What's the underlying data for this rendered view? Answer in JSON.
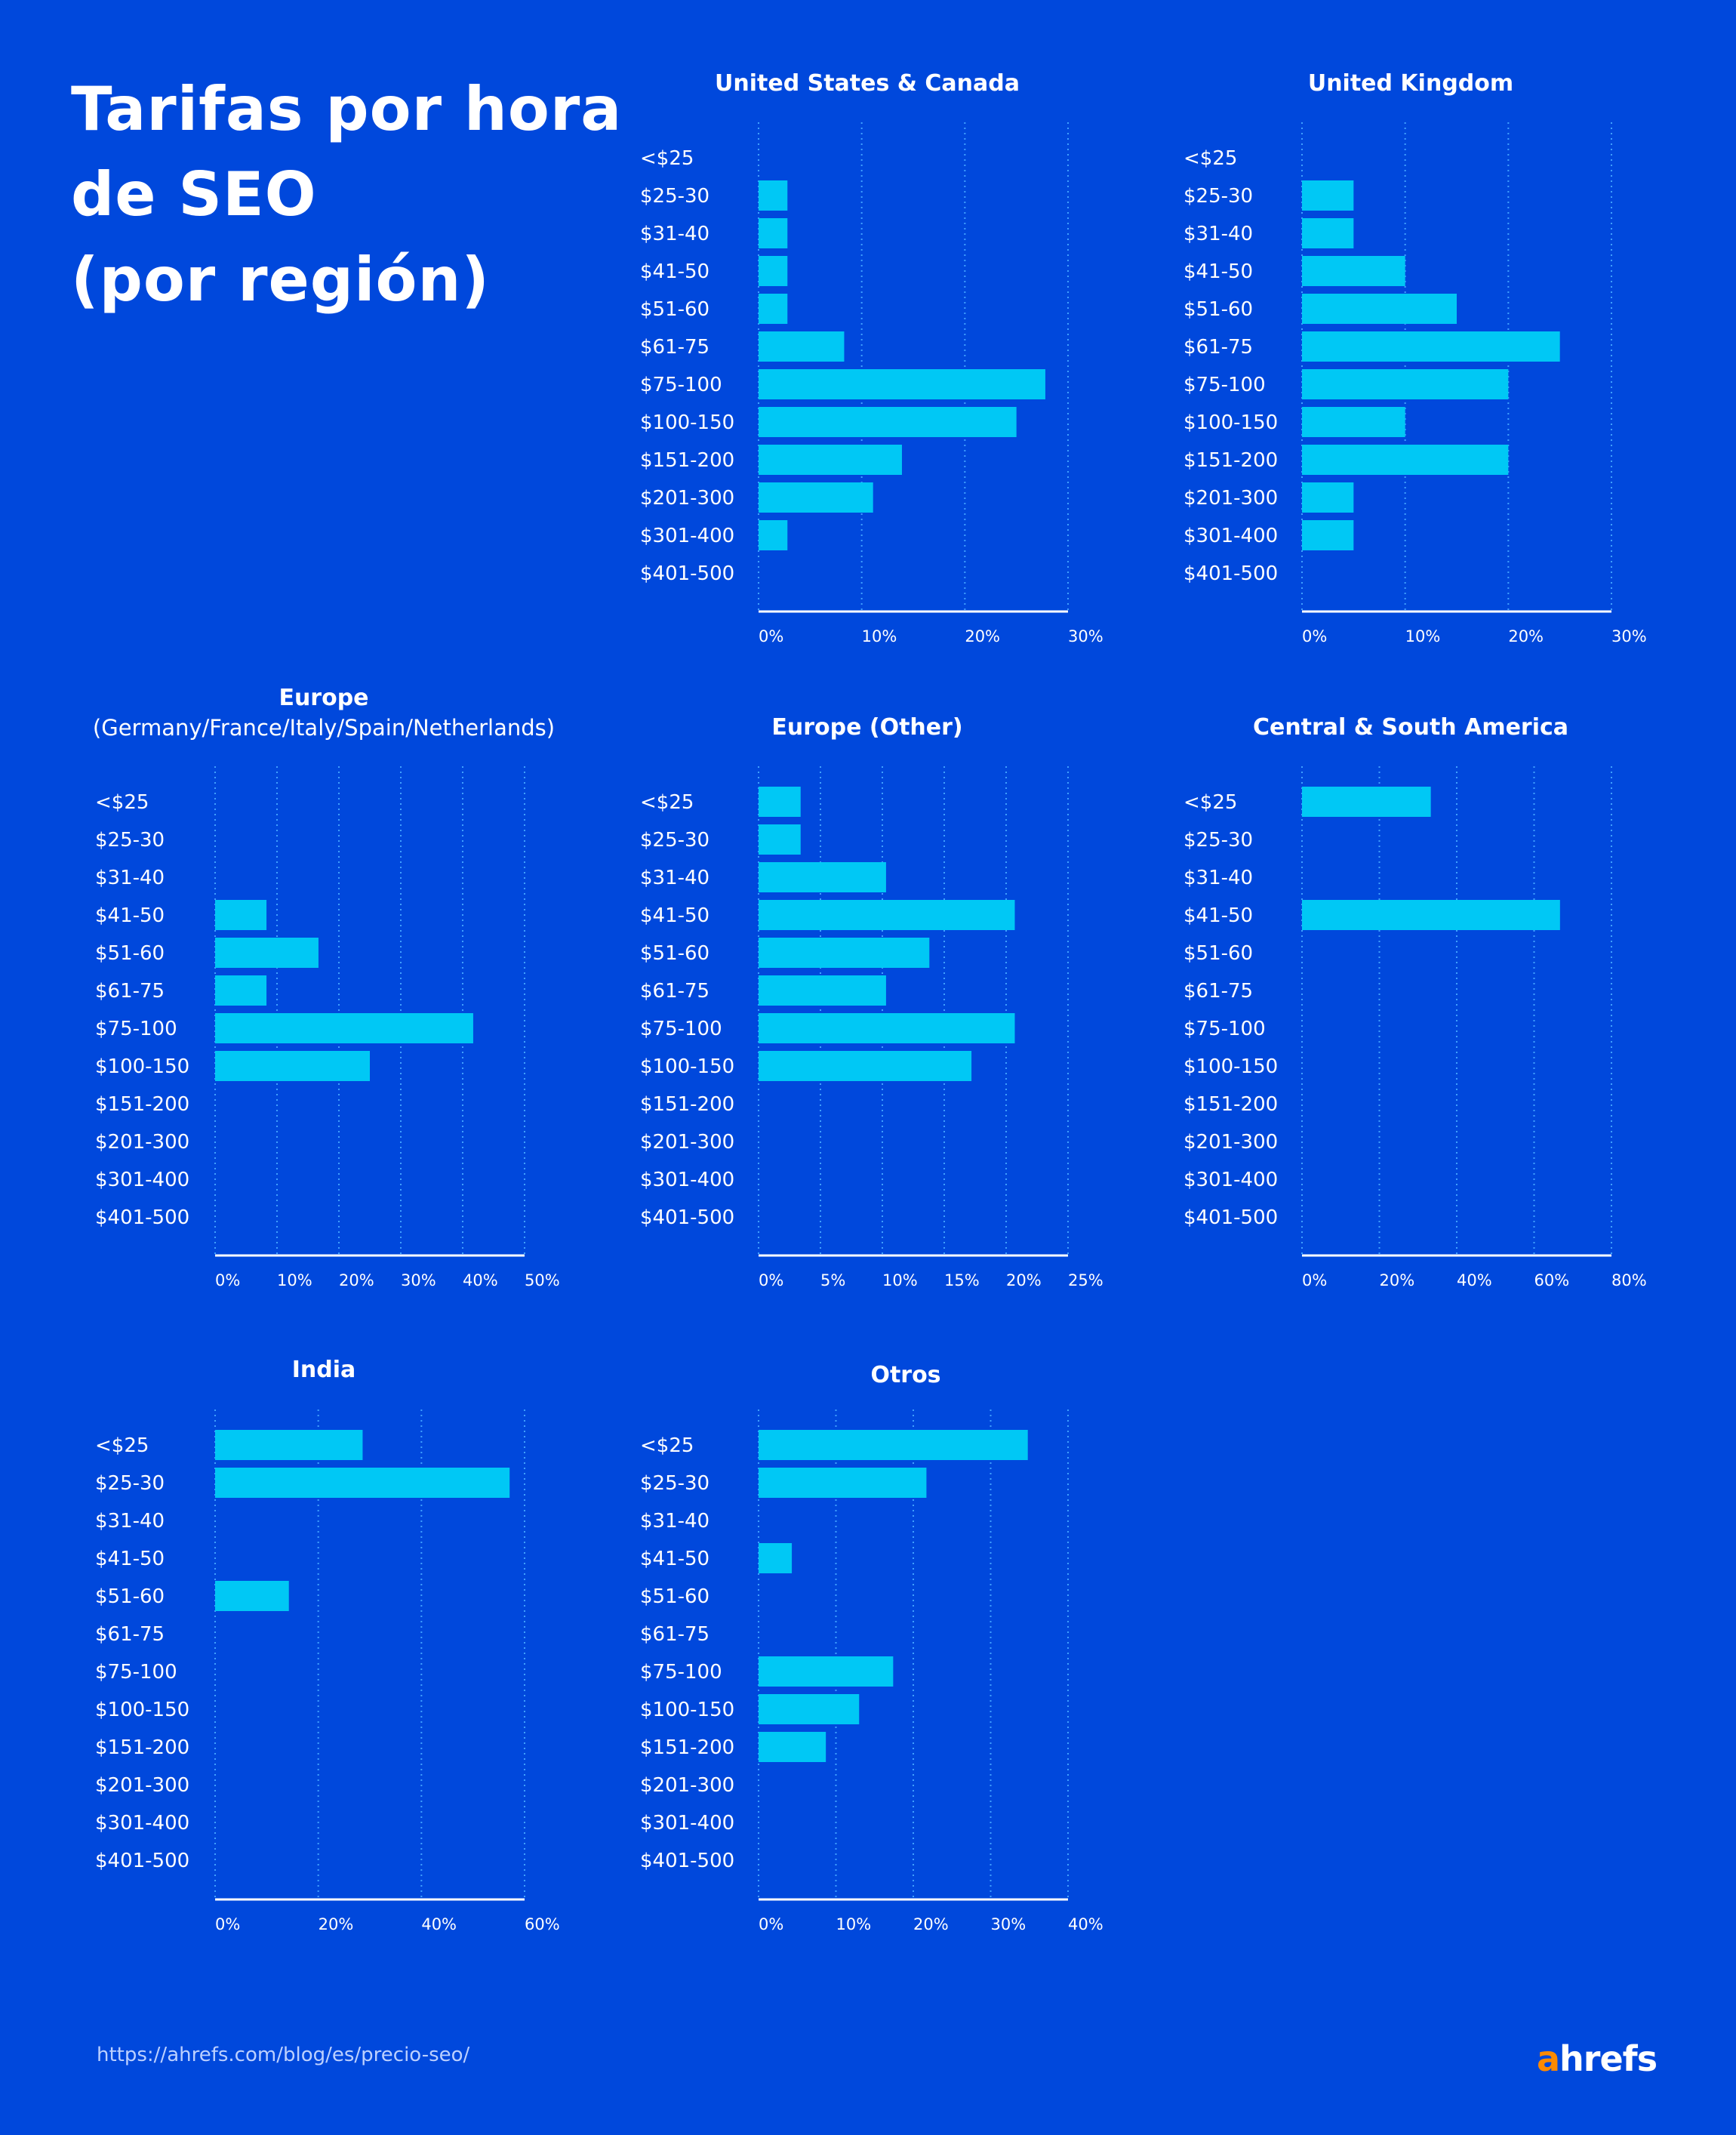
{
  "title_lines": [
    "Tarifas por hora",
    "de SEO",
    "(por región)"
  ],
  "footer_url": "https://ahrefs.com/blog/es/precio-seo/",
  "logo": {
    "accent": "a",
    "rest": "hrefs",
    "accent_color": "#FF8A00"
  },
  "colors": {
    "background": "#0048DC",
    "bar": "#00C8F5",
    "grid": "#3FA0FF",
    "axis": "#FFFFFF"
  },
  "chart_data": [
    {
      "type": "bar",
      "orientation": "horizontal",
      "title": "United States & Canada",
      "subtitle": "",
      "categories": [
        "<$25",
        "$25-30",
        "$31-40",
        "$41-50",
        "$51-60",
        "$61-75",
        "$75-100",
        "$100-150",
        "$151-200",
        "$201-300",
        "$301-400",
        "$401-500"
      ],
      "values": [
        0,
        2.8,
        2.8,
        2.8,
        2.8,
        8.3,
        27.8,
        25.0,
        13.9,
        11.1,
        2.8,
        0
      ],
      "xlim": [
        0,
        30
      ],
      "xticks": [
        "0%",
        "10%",
        "20%",
        "30%"
      ],
      "grid": true
    },
    {
      "type": "bar",
      "orientation": "horizontal",
      "title": "United Kingdom",
      "subtitle": "",
      "categories": [
        "<$25",
        "$25-30",
        "$31-40",
        "$41-50",
        "$51-60",
        "$61-75",
        "$75-100",
        "$100-150",
        "$151-200",
        "$201-300",
        "$301-400",
        "$401-500"
      ],
      "values": [
        0,
        5,
        5,
        10,
        15,
        25,
        20,
        10,
        20,
        5,
        5,
        0
      ],
      "xlim": [
        0,
        30
      ],
      "xticks": [
        "0%",
        "10%",
        "20%",
        "30%"
      ],
      "grid": true
    },
    {
      "type": "bar",
      "orientation": "horizontal",
      "title": "Europe",
      "subtitle": "(Germany/France/Italy/Spain/Netherlands)",
      "categories": [
        "<$25",
        "$25-30",
        "$31-40",
        "$41-50",
        "$51-60",
        "$61-75",
        "$75-100",
        "$100-150",
        "$151-200",
        "$201-300",
        "$301-400",
        "$401-500"
      ],
      "values": [
        0,
        0,
        0,
        8.3,
        16.7,
        8.3,
        41.7,
        25.0,
        0,
        0,
        0,
        0
      ],
      "xlim": [
        0,
        50
      ],
      "xticks": [
        "0%",
        "10%",
        "20%",
        "30%",
        "40%",
        "50%"
      ],
      "grid": true
    },
    {
      "type": "bar",
      "orientation": "horizontal",
      "title": "Europe (Other)",
      "subtitle": "",
      "categories": [
        "<$25",
        "$25-30",
        "$31-40",
        "$41-50",
        "$51-60",
        "$61-75",
        "$75-100",
        "$100-150",
        "$151-200",
        "$201-300",
        "$301-400",
        "$401-500"
      ],
      "values": [
        3.4,
        3.4,
        10.3,
        20.7,
        13.8,
        10.3,
        20.7,
        17.2,
        0,
        0,
        0,
        0
      ],
      "xlim": [
        0,
        25
      ],
      "xticks": [
        "0%",
        "5%",
        "10%",
        "15%",
        "20%",
        "25%"
      ],
      "grid": true
    },
    {
      "type": "bar",
      "orientation": "horizontal",
      "title": "Central & South America",
      "subtitle": "",
      "categories": [
        "<$25",
        "$25-30",
        "$31-40",
        "$41-50",
        "$51-60",
        "$61-75",
        "$75-100",
        "$100-150",
        "$151-200",
        "$201-300",
        "$301-400",
        "$401-500"
      ],
      "values": [
        33.3,
        0,
        0,
        66.7,
        0,
        0,
        0,
        0,
        0,
        0,
        0,
        0
      ],
      "xlim": [
        0,
        80
      ],
      "xticks": [
        "0%",
        "20%",
        "40%",
        "60%",
        "80%"
      ],
      "grid": true
    },
    {
      "type": "bar",
      "orientation": "horizontal",
      "title": "India",
      "subtitle": "",
      "categories": [
        "<$25",
        "$25-30",
        "$31-40",
        "$41-50",
        "$51-60",
        "$61-75",
        "$75-100",
        "$100-150",
        "$151-200",
        "$201-300",
        "$301-400",
        "$401-500"
      ],
      "values": [
        28.6,
        57.1,
        0,
        0,
        14.3,
        0,
        0,
        0,
        0,
        0,
        0,
        0
      ],
      "xlim": [
        0,
        60
      ],
      "xticks": [
        "0%",
        "20%",
        "40%",
        "60%"
      ],
      "grid": true
    },
    {
      "type": "bar",
      "orientation": "horizontal",
      "title": "Otros",
      "subtitle": "",
      "categories": [
        "<$25",
        "$25-30",
        "$31-40",
        "$41-50",
        "$51-60",
        "$61-75",
        "$75-100",
        "$100-150",
        "$151-200",
        "$201-300",
        "$301-400",
        "$401-500"
      ],
      "values": [
        34.8,
        21.7,
        0,
        4.3,
        0,
        0,
        17.4,
        13.0,
        8.7,
        0,
        0,
        0
      ],
      "xlim": [
        0,
        40
      ],
      "xticks": [
        "0%",
        "10%",
        "20%",
        "30%",
        "40%"
      ],
      "grid": true
    }
  ]
}
